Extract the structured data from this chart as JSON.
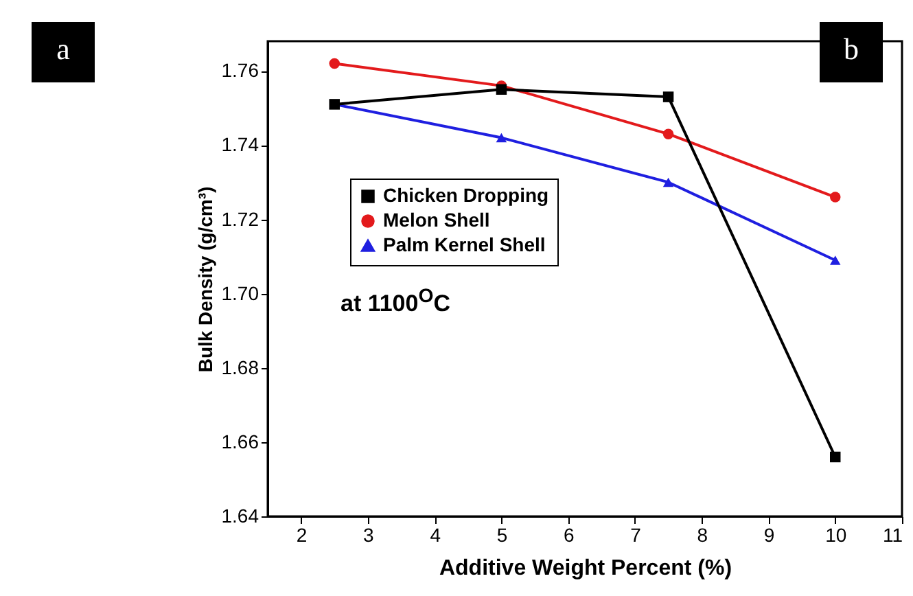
{
  "chart_data": {
    "type": "line",
    "xlabel": "Additive Weight Percent (%)",
    "ylabel": "Bulk Density (g/cm³)",
    "x": [
      2.5,
      5,
      7.5,
      10
    ],
    "series": [
      {
        "name": "Chicken Dropping",
        "color": "#000000",
        "marker": "square",
        "values": [
          1.751,
          1.755,
          1.753,
          1.656
        ]
      },
      {
        "name": "Melon Shell",
        "color": "#e31a1c",
        "marker": "circle",
        "values": [
          1.762,
          1.756,
          1.743,
          1.726
        ]
      },
      {
        "name": "Palm Kernel Shell",
        "color": "#1f1fe0",
        "marker": "triangle",
        "values": [
          1.751,
          1.742,
          1.73,
          1.709
        ]
      }
    ],
    "xlim": [
      1.5,
      11
    ],
    "xticks": [
      2,
      3,
      4,
      5,
      6,
      7,
      8,
      9,
      10,
      11
    ],
    "ylim": [
      1.64,
      1.768
    ],
    "yticks": [
      {
        "value": 1.64,
        "label": "1.64"
      },
      {
        "value": 1.66,
        "label": "1.66"
      },
      {
        "value": 1.68,
        "label": "1.68"
      },
      {
        "value": 1.7,
        "label": "1.70"
      },
      {
        "value": 1.72,
        "label": "1.72"
      },
      {
        "value": 1.74,
        "label": "1.74"
      },
      {
        "value": 1.76,
        "label": "1.76"
      }
    ],
    "grid": false,
    "legend": "top left",
    "line_style": "solid",
    "annotations": [
      "at 1100$^{O}$C",
      "a",
      "b"
    ]
  }
}
